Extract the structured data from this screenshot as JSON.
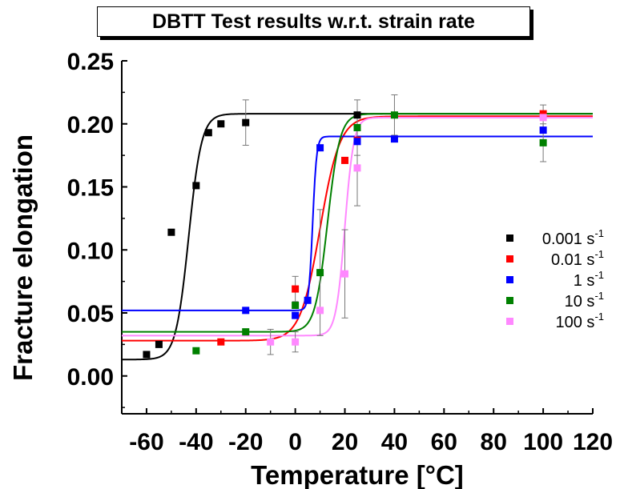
{
  "chart_data": {
    "type": "scatter",
    "title": "DBTT Test results w.r.t. strain rate",
    "xlabel": "Temperature [°C]",
    "ylabel": "Fracture elongation",
    "xlim": [
      -70,
      120
    ],
    "ylim": [
      -0.03,
      0.25
    ],
    "xticks": [
      -60,
      -40,
      -20,
      0,
      20,
      40,
      60,
      80,
      100,
      120
    ],
    "xtick_labels": [
      "-60",
      "-40",
      "-20",
      "0",
      "20",
      "40",
      "60",
      "80",
      "100",
      "120"
    ],
    "yticks": [
      0.0,
      0.05,
      0.1,
      0.15,
      0.2,
      0.25
    ],
    "ytick_labels": [
      "0.00",
      "0.05",
      "0.10",
      "0.15",
      "0.20",
      "0.25"
    ],
    "legend_position": "right",
    "series": [
      {
        "name": "0.001 s",
        "name_sup": "-1",
        "color": "#000000",
        "points": [
          {
            "x": -60,
            "y": 0.017
          },
          {
            "x": -55,
            "y": 0.025
          },
          {
            "x": -50,
            "y": 0.114
          },
          {
            "x": -40,
            "y": 0.151
          },
          {
            "x": -35,
            "y": 0.193
          },
          {
            "x": -30,
            "y": 0.2
          },
          {
            "x": -20,
            "y": 0.201,
            "err": 0.018
          },
          {
            "x": 25,
            "y": 0.207
          }
        ],
        "fit": {
          "A1": 0.013,
          "A2": 0.208,
          "x0": -43,
          "dx": 2.6
        }
      },
      {
        "name": "0.01 s",
        "name_sup": "-1",
        "color": "#ff0000",
        "points": [
          {
            "x": -30,
            "y": 0.027
          },
          {
            "x": 0,
            "y": 0.069,
            "err": 0.01
          },
          {
            "x": 20,
            "y": 0.171
          },
          {
            "x": 25,
            "y": 0.187
          },
          {
            "x": 100,
            "y": 0.208
          }
        ],
        "fit": {
          "A1": 0.028,
          "A2": 0.206,
          "x0": 10,
          "dx": 4
        }
      },
      {
        "name": "1 s",
        "name_sup": "-1",
        "color": "#0000ff",
        "points": [
          {
            "x": -20,
            "y": 0.052
          },
          {
            "x": 0,
            "y": 0.048
          },
          {
            "x": 5,
            "y": 0.06
          },
          {
            "x": 10,
            "y": 0.181
          },
          {
            "x": 25,
            "y": 0.186
          },
          {
            "x": 40,
            "y": 0.188
          },
          {
            "x": 100,
            "y": 0.195
          }
        ],
        "fit": {
          "A1": 0.052,
          "A2": 0.19,
          "x0": 7,
          "dx": 0.8
        }
      },
      {
        "name": "10 s",
        "name_sup": "-1",
        "color": "#008000",
        "points": [
          {
            "x": -40,
            "y": 0.02
          },
          {
            "x": -20,
            "y": 0.035
          },
          {
            "x": 0,
            "y": 0.056
          },
          {
            "x": 10,
            "y": 0.082,
            "err": 0.05
          },
          {
            "x": 25,
            "y": 0.197,
            "err": 0.022
          },
          {
            "x": 40,
            "y": 0.207,
            "err": 0.016
          },
          {
            "x": 100,
            "y": 0.185,
            "err": 0.015
          }
        ],
        "fit": {
          "A1": 0.035,
          "A2": 0.208,
          "x0": 13,
          "dx": 2.5
        }
      },
      {
        "name": "100 s",
        "name_sup": "-1",
        "color": "#ff88ff",
        "points": [
          {
            "x": -10,
            "y": 0.027,
            "err": 0.01
          },
          {
            "x": 0,
            "y": 0.027,
            "err": 0.008
          },
          {
            "x": 10,
            "y": 0.052
          },
          {
            "x": 20,
            "y": 0.081,
            "err": 0.035
          },
          {
            "x": 25,
            "y": 0.165,
            "err": 0.03
          },
          {
            "x": 100,
            "y": 0.205,
            "err": 0.01
          }
        ],
        "fit": {
          "A1": 0.032,
          "A2": 0.205,
          "x0": 20,
          "dx": 1.8
        }
      }
    ]
  }
}
